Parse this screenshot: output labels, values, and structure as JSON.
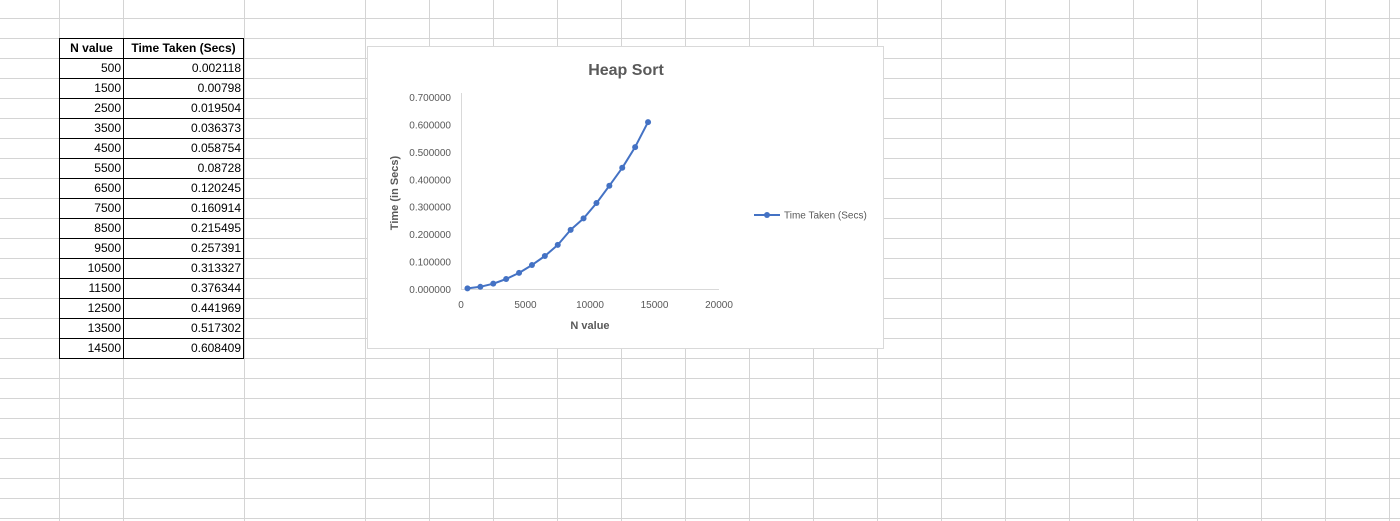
{
  "table": {
    "headers": [
      "N value",
      "Time Taken (Secs)"
    ],
    "rows": [
      [
        "500",
        "0.002118"
      ],
      [
        "1500",
        "0.00798"
      ],
      [
        "2500",
        "0.019504"
      ],
      [
        "3500",
        "0.036373"
      ],
      [
        "4500",
        "0.058754"
      ],
      [
        "5500",
        "0.08728"
      ],
      [
        "6500",
        "0.120245"
      ],
      [
        "7500",
        "0.160914"
      ],
      [
        "8500",
        "0.215495"
      ],
      [
        "9500",
        "0.257391"
      ],
      [
        "10500",
        "0.313327"
      ],
      [
        "11500",
        "0.376344"
      ],
      [
        "12500",
        "0.441969"
      ],
      [
        "13500",
        "0.517302"
      ],
      [
        "14500",
        "0.608409"
      ]
    ]
  },
  "chart_data": {
    "type": "scatter",
    "title": "Heap Sort",
    "xlabel": "N value",
    "ylabel": "Time (in Secs)",
    "xlim": [
      0,
      20000
    ],
    "ylim": [
      0,
      0.7
    ],
    "x_ticks": [
      0,
      5000,
      10000,
      15000,
      20000
    ],
    "y_ticks": [
      "0.000000",
      "0.100000",
      "0.200000",
      "0.300000",
      "0.400000",
      "0.500000",
      "0.600000",
      "0.700000"
    ],
    "grid": false,
    "legend_position": "right",
    "series": [
      {
        "name": "Time Taken (Secs)",
        "color": "#4472c4",
        "x": [
          500,
          1500,
          2500,
          3500,
          4500,
          5500,
          6500,
          7500,
          8500,
          9500,
          10500,
          11500,
          12500,
          13500,
          14500
        ],
        "y": [
          0.002118,
          0.00798,
          0.019504,
          0.036373,
          0.058754,
          0.08728,
          0.120245,
          0.160914,
          0.215495,
          0.257391,
          0.313327,
          0.376344,
          0.441969,
          0.517302,
          0.608409
        ]
      }
    ]
  }
}
